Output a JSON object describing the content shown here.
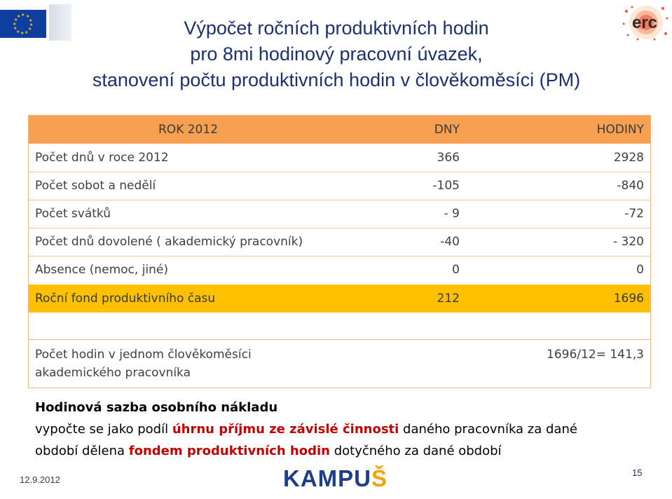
{
  "title": {
    "line1": "Výpočet ročních produktivních hodin",
    "line2": "pro 8mi hodinový pracovní úvazek,",
    "line3": "stanovení počtu produktivních hodin v člověkoměsíci (PM)"
  },
  "logos": {
    "left": "eu-flag-icon",
    "right": "erc-logo-icon",
    "right_text": "erc"
  },
  "table": {
    "headers": [
      "ROK 2012",
      "DNY",
      "HODINY"
    ],
    "rows": [
      {
        "label": "Počet dnů v roce 2012",
        "days": "366",
        "hours": "2928"
      },
      {
        "label": "Počet  sobot a nedělí",
        "days": "-105",
        "hours": "-840"
      },
      {
        "label": "Počet svátků",
        "days": "- 9",
        "hours": "-72"
      },
      {
        "label": "Počet dnů dovolené ( akademický pracovník)",
        "days": "-40",
        "hours": "- 320"
      },
      {
        "label": "Absence (nemoc, jiné)",
        "days": "0",
        "hours": "0"
      }
    ],
    "total": {
      "label": "Roční fond produktivního času",
      "days": "212",
      "hours": "1696"
    },
    "pm": {
      "label_line1": "Počet hodin v jednom  člověkoměsíci",
      "label_line2": "akademického pracovníka",
      "value": "1696/12= 141,3"
    },
    "colors": {
      "header": "#f7a052",
      "total": "#ffc000",
      "border": "#f4b183"
    }
  },
  "note": {
    "heading": "Hodinová sazba osobního nákladu",
    "line2_a": "vypočte se  jako podíl ",
    "line2_hl": "úhrnu příjmu ze závislé činnosti",
    "line2_b": " daného pracovníka za dané",
    "line3_a": "období dělena ",
    "line3_hl": "fondem produktivních hodin",
    "line3_b": " dotyčného za dané období",
    "highlight_color": "#c00000"
  },
  "footer": {
    "date": "12.9.2012",
    "brand_a": "KAMPU",
    "brand_b": "Š",
    "page": "15"
  }
}
